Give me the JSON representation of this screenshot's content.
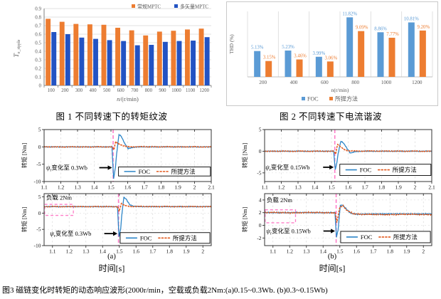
{
  "figure1": {
    "caption": "图 1 不同转速下的转矩纹波",
    "chart_data": {
      "type": "bar",
      "categories": [
        "100",
        "200",
        "300",
        "400",
        "500",
        "600",
        "700",
        "800",
        "900",
        "1000",
        "1100",
        "1200"
      ],
      "series": [
        {
          "name": "常规MPTC",
          "color": "#ED7D31",
          "values": [
            0.78,
            0.745,
            0.72,
            0.715,
            0.71,
            0.675,
            0.645,
            0.585,
            0.63,
            0.64,
            0.655,
            0.665
          ]
        },
        {
          "name": "多矢量MPTC",
          "color": "#2353C3",
          "values": [
            0.625,
            0.6,
            0.56,
            0.545,
            0.53,
            0.52,
            0.47,
            0.475,
            0.51,
            0.52,
            0.525,
            0.565
          ]
        }
      ],
      "xlabel_main": "n",
      "xlabel_rest": "/(r/min)",
      "ylabel_main": "T",
      "ylabel_sub": "e_ripple",
      "ylim": [
        0,
        0.9
      ],
      "ytick_step": 0.1,
      "legend_position": "top-right",
      "grid": "horizontal"
    }
  },
  "figure2": {
    "caption": "图 2 不同转速下电流谐波",
    "chart_data": {
      "type": "bar",
      "categories": [
        "200",
        "400",
        "600",
        "800",
        "1000",
        "1200"
      ],
      "series": [
        {
          "name": "FOC",
          "color": "#5B9BD5",
          "values": [
            5.13,
            5.23,
            3.99,
            11.82,
            8.86,
            10.81
          ]
        },
        {
          "name": "所提方法",
          "color": "#ED7D31",
          "values": [
            3.15,
            3.46,
            3.06,
            9.09,
            7.77,
            9.2
          ]
        }
      ],
      "xlabel": "n(r/min)",
      "ylabel": "THD (%)",
      "ylim": [
        0,
        13
      ],
      "data_labels": true,
      "data_label_suffix": "%",
      "legend_position": "bottom",
      "grid": "vertical"
    }
  },
  "figure3": {
    "caption": "图3 磁链变化时转矩的动态响应波形(2000r/min，空载或负载2Nm:(a)0.15~0.3Wb. (b)0.3~0.15Wb)",
    "xlabel": "时间[s]",
    "ylabel": "转矩 [Nm]",
    "sublabels": [
      "(a)",
      "(b)"
    ],
    "legend": {
      "foc": "FOC",
      "proposed": "所提方法"
    },
    "colors": {
      "foc": "#2E86C8",
      "proposed": "#E2571A",
      "event": "#FF7DC8",
      "grid": "#D9D9D9",
      "axis": "#333333"
    },
    "chart_data": [
      {
        "type": "line",
        "id": "a-top",
        "xlim": [
          1.1,
          2.1
        ],
        "xticks": [
          1.1,
          1.2,
          1.3,
          1.4,
          1.5,
          1.6,
          1.7,
          1.8,
          1.9,
          2.0,
          2.1
        ],
        "ylim": [
          -10,
          5
        ],
        "yticks": [
          5,
          0,
          -5,
          -10
        ],
        "event_x": 1.513,
        "annotation": {
          "sym": "ψ",
          "sub": "r",
          "text": "变化至 0.3Wb",
          "x": 1.112,
          "y": -6.0,
          "arrow_from_x": 1.43
        },
        "legend_box": [
          1.545,
          -8.4,
          2.095,
          -5.8
        ],
        "noise": 0.15,
        "series": {
          "foc": [
            [
              1.1,
              0
            ],
            [
              1.506,
              0
            ],
            [
              1.516,
              -9.2
            ],
            [
              1.527,
              -5.8
            ],
            [
              1.534,
              -2.0
            ],
            [
              1.548,
              3.6
            ],
            [
              1.562,
              3.0
            ],
            [
              1.582,
              1.0
            ],
            [
              1.603,
              -0.5
            ],
            [
              1.63,
              -0.15
            ],
            [
              1.66,
              0
            ],
            [
              2.1,
              0
            ]
          ],
          "proposed": [
            [
              1.1,
              0
            ],
            [
              1.509,
              0
            ],
            [
              1.517,
              -0.9
            ],
            [
              1.528,
              1.5
            ],
            [
              1.548,
              0.9
            ],
            [
              1.572,
              0.3
            ],
            [
              1.6,
              0.05
            ],
            [
              2.1,
              0
            ]
          ]
        }
      },
      {
        "type": "line",
        "id": "b-top",
        "xlim": [
          1.1,
          2.1
        ],
        "xticks": [
          1.1,
          1.2,
          1.3,
          1.4,
          1.5,
          1.6,
          1.7,
          1.8,
          1.9,
          2.0,
          2.1
        ],
        "ylim": [
          -7,
          5
        ],
        "yticks": [
          5,
          0,
          -5
        ],
        "event_x": 1.52,
        "annotation": {
          "sym": "ψ",
          "sub": "r",
          "text": "变化至 0.15Wb",
          "x": 1.105,
          "y": -3.7,
          "arrow_from_x": 1.45
        },
        "legend_box": [
          1.55,
          -5.6,
          2.095,
          -3.0
        ],
        "noise": 0.13,
        "series": {
          "foc": [
            [
              1.1,
              0
            ],
            [
              1.513,
              0
            ],
            [
              1.523,
              -4.3
            ],
            [
              1.533,
              -2.5
            ],
            [
              1.54,
              -0.5
            ],
            [
              1.556,
              2.3
            ],
            [
              1.572,
              1.9
            ],
            [
              1.592,
              0.7
            ],
            [
              1.613,
              -0.45
            ],
            [
              1.64,
              -0.1
            ],
            [
              1.68,
              0
            ],
            [
              2.1,
              0
            ]
          ],
          "proposed": [
            [
              1.1,
              0
            ],
            [
              1.516,
              0
            ],
            [
              1.524,
              -0.7
            ],
            [
              1.537,
              1.6
            ],
            [
              1.556,
              1.0
            ],
            [
              1.582,
              0.3
            ],
            [
              1.61,
              0.05
            ],
            [
              2.1,
              0
            ]
          ]
        }
      },
      {
        "type": "line",
        "id": "a-bottom",
        "xlim": [
          1.05,
          2.05
        ],
        "xticks": [
          1.1,
          1.2,
          1.3,
          1.4,
          1.5,
          1.6,
          1.7,
          1.8,
          1.9,
          2.0
        ],
        "ylim": [
          -10,
          6
        ],
        "yticks": [
          5,
          0,
          -5,
          -10
        ],
        "event_x": 1.495,
        "annotation": {
          "sym": "ψ",
          "sub": "r",
          "text": "变化至 0.3Wb",
          "x": 1.085,
          "y": -6.3,
          "arrow_from_x": 1.41
        },
        "load_label": {
          "text": "负载 2Nm",
          "x": 1.062,
          "y": 4.8
        },
        "load_box": [
          1.053,
          -0.7,
          1.225,
          2.7
        ],
        "legend_box": [
          1.505,
          -9.3,
          2.042,
          -6.0
        ],
        "noise": 0.16,
        "series": {
          "foc": [
            [
              1.05,
              2
            ],
            [
              1.489,
              2
            ],
            [
              1.498,
              -7.2
            ],
            [
              1.508,
              -5.0
            ],
            [
              1.514,
              -1.0
            ],
            [
              1.527,
              4.9
            ],
            [
              1.541,
              4.3
            ],
            [
              1.562,
              2.6
            ],
            [
              1.585,
              2.1
            ],
            [
              1.63,
              2.0
            ],
            [
              2.05,
              2
            ]
          ],
          "proposed": [
            [
              1.05,
              2
            ],
            [
              1.491,
              2
            ],
            [
              1.499,
              0.5
            ],
            [
              1.512,
              2.9
            ],
            [
              1.53,
              2.4
            ],
            [
              1.56,
              2.05
            ],
            [
              2.05,
              2
            ]
          ]
        }
      },
      {
        "type": "line",
        "id": "b-bottom",
        "xlim": [
          1.05,
          2.05
        ],
        "xticks": [
          1.1,
          1.2,
          1.3,
          1.4,
          1.5,
          1.6,
          1.7,
          1.8,
          1.9,
          2.0
        ],
        "ylim": [
          -3.2,
          5
        ],
        "yticks": [
          4,
          2,
          0,
          -2
        ],
        "event_x": 1.478,
        "annotation": {
          "sym": "ψ",
          "sub": "r",
          "text": "变化至 0.15Wb",
          "x": 1.06,
          "y": -0.9,
          "arrow_from_x": 1.402
        },
        "load_label": {
          "text": "负载 2Nm",
          "x": 1.062,
          "y": 4.0
        },
        "load_box": [
          1.053,
          0.4,
          1.235,
          2.45
        ],
        "legend_box": [
          1.505,
          -2.75,
          2.042,
          -0.95
        ],
        "noise": 0.12,
        "series": {
          "foc": [
            [
              1.05,
              2
            ],
            [
              1.471,
              2
            ],
            [
              1.48,
              -1.9
            ],
            [
              1.489,
              -0.8
            ],
            [
              1.503,
              3.1
            ],
            [
              1.517,
              3.2
            ],
            [
              1.538,
              2.6
            ],
            [
              1.565,
              1.9
            ],
            [
              1.6,
              1.75
            ],
            [
              1.7,
              1.8
            ],
            [
              2.05,
              1.8
            ]
          ],
          "proposed": [
            [
              1.05,
              2
            ],
            [
              1.473,
              2
            ],
            [
              1.482,
              0.4
            ],
            [
              1.5,
              2.9
            ],
            [
              1.52,
              3.0
            ],
            [
              1.545,
              2.3
            ],
            [
              1.58,
              1.85
            ],
            [
              1.63,
              1.7
            ],
            [
              2.05,
              1.72
            ]
          ]
        }
      }
    ]
  }
}
